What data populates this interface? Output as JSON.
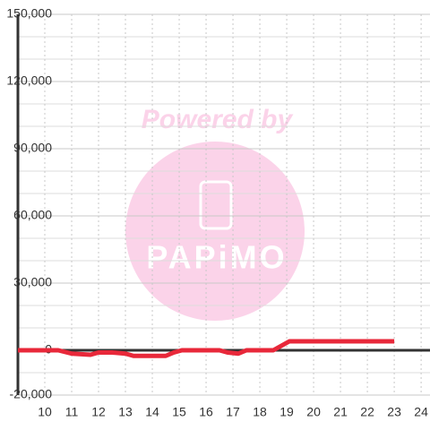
{
  "chart_data": {
    "type": "line",
    "watermark": [
      "Powered by",
      "PAPiMO"
    ],
    "x": [
      9,
      10.5,
      11,
      11.7,
      12,
      12.5,
      13,
      13.3,
      14.5,
      14.8,
      15.1,
      16.5,
      16.8,
      17.2,
      17.5,
      18.5,
      19.1,
      23
    ],
    "series": [
      {
        "color": "#e8283a",
        "values": [
          0,
          0,
          -1500,
          -2000,
          -1000,
          -1000,
          -1500,
          -2500,
          -2500,
          -1000,
          0,
          0,
          -1000,
          -1500,
          0,
          0,
          4000,
          4000
        ]
      }
    ],
    "xlim": [
      9,
      24.33
    ],
    "xticks": [
      10,
      11,
      12,
      13,
      14,
      15,
      16,
      17,
      18,
      19,
      20,
      21,
      22,
      23,
      24
    ],
    "ylim": [
      -20000,
      150000
    ],
    "yticks": [
      {
        "value": -20000,
        "label": "-20,000"
      },
      0,
      {
        "value": 30000,
        "label": "30,000"
      },
      {
        "value": 60000,
        "label": "60,000"
      },
      {
        "value": 90000,
        "label": "90,000"
      },
      {
        "value": 120000,
        "label": "120,000"
      },
      {
        "value": 150000,
        "label": "150,000"
      }
    ],
    "y_minor_ticks": [
      -10000,
      10000,
      20000,
      40000,
      50000,
      70000,
      80000,
      100000,
      110000,
      130000,
      140000
    ],
    "grid": true
  }
}
